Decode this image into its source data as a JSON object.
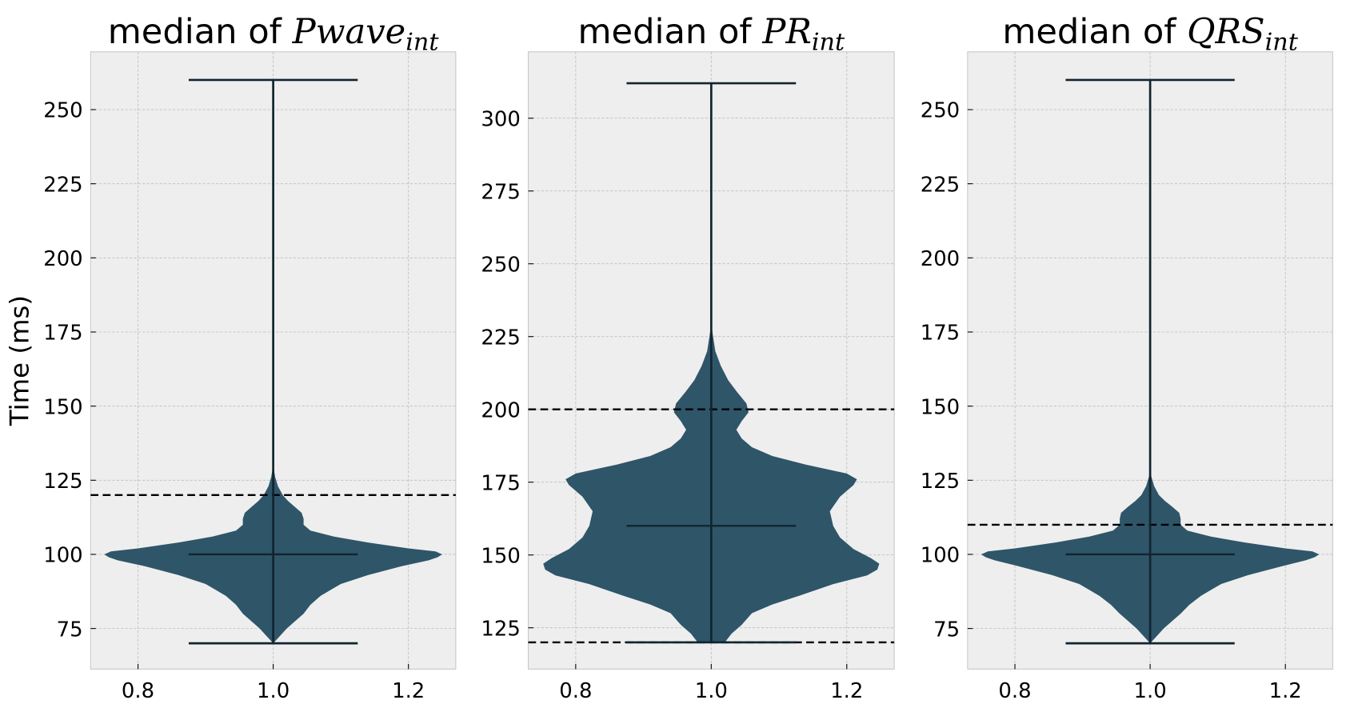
{
  "chart_data": [
    {
      "type": "violin",
      "title_prefix": "median of ",
      "title_var": "Pwave",
      "title_sub": "int",
      "ylabel": "Time (ms)",
      "xlabel": "",
      "xlim": [
        0.73,
        1.27
      ],
      "ylim": [
        61.3,
        269.5
      ],
      "xticks": [
        "0.8",
        "1.0",
        "1.2"
      ],
      "yticks": [
        "75",
        "100",
        "125",
        "150",
        "175",
        "200",
        "225",
        "250"
      ],
      "grid": true,
      "position": 1.0,
      "min": 70,
      "max": 260,
      "median": 100,
      "reference_lines": [
        120
      ],
      "density_profile": [
        [
          70,
          0
        ],
        [
          72,
          0.008
        ],
        [
          75,
          0.02
        ],
        [
          78,
          0.035
        ],
        [
          80,
          0.045
        ],
        [
          83,
          0.055
        ],
        [
          86,
          0.07
        ],
        [
          88,
          0.085
        ],
        [
          90,
          0.1
        ],
        [
          93,
          0.14
        ],
        [
          96,
          0.19
        ],
        [
          98,
          0.23
        ],
        [
          99,
          0.243
        ],
        [
          100,
          0.25
        ],
        [
          101,
          0.24
        ],
        [
          102,
          0.2
        ],
        [
          104,
          0.14
        ],
        [
          106,
          0.09
        ],
        [
          108,
          0.055
        ],
        [
          110,
          0.045
        ],
        [
          112,
          0.045
        ],
        [
          114,
          0.042
        ],
        [
          116,
          0.032
        ],
        [
          118,
          0.022
        ],
        [
          120,
          0.014
        ],
        [
          123,
          0.007
        ],
        [
          126,
          0.003
        ],
        [
          130,
          0.0
        ]
      ]
    },
    {
      "type": "violin",
      "title_prefix": "median of ",
      "title_var": "PR",
      "title_sub": "int",
      "ylabel": "",
      "xlabel": "",
      "xlim": [
        0.73,
        1.27
      ],
      "ylim": [
        110.8,
        322.8
      ],
      "xticks": [
        "0.8",
        "1.0",
        "1.2"
      ],
      "yticks": [
        "125",
        "150",
        "175",
        "200",
        "225",
        "250",
        "275",
        "300"
      ],
      "grid": true,
      "position": 1.0,
      "min": 120,
      "max": 312,
      "median": 160,
      "reference_lines": [
        200,
        120
      ],
      "density_profile": [
        [
          120,
          0.02
        ],
        [
          123,
          0.03
        ],
        [
          126,
          0.045
        ],
        [
          130,
          0.06
        ],
        [
          133,
          0.09
        ],
        [
          136,
          0.13
        ],
        [
          140,
          0.18
        ],
        [
          143,
          0.23
        ],
        [
          145,
          0.245
        ],
        [
          147,
          0.248
        ],
        [
          149,
          0.235
        ],
        [
          152,
          0.21
        ],
        [
          156,
          0.19
        ],
        [
          160,
          0.18
        ],
        [
          165,
          0.175
        ],
        [
          170,
          0.19
        ],
        [
          174,
          0.21
        ],
        [
          176,
          0.215
        ],
        [
          178,
          0.2
        ],
        [
          181,
          0.14
        ],
        [
          184,
          0.09
        ],
        [
          187,
          0.06
        ],
        [
          190,
          0.045
        ],
        [
          193,
          0.037
        ],
        [
          196,
          0.045
        ],
        [
          199,
          0.055
        ],
        [
          202,
          0.052
        ],
        [
          206,
          0.038
        ],
        [
          210,
          0.025
        ],
        [
          215,
          0.014
        ],
        [
          220,
          0.006
        ],
        [
          226,
          0.002
        ],
        [
          230,
          0.0
        ]
      ]
    },
    {
      "type": "violin",
      "title_prefix": "median of ",
      "title_var": "QRS",
      "title_sub": "int",
      "ylabel": "",
      "xlabel": "",
      "xlim": [
        0.73,
        1.27
      ],
      "ylim": [
        61.3,
        269.5
      ],
      "xticks": [
        "0.8",
        "1.0",
        "1.2"
      ],
      "yticks": [
        "75",
        "100",
        "125",
        "150",
        "175",
        "200",
        "225",
        "250"
      ],
      "grid": true,
      "position": 1.0,
      "min": 70,
      "max": 260,
      "median": 100,
      "reference_lines": [
        110
      ],
      "density_profile": [
        [
          70,
          0
        ],
        [
          72,
          0.008
        ],
        [
          75,
          0.02
        ],
        [
          78,
          0.035
        ],
        [
          80,
          0.045
        ],
        [
          83,
          0.058
        ],
        [
          86,
          0.075
        ],
        [
          88,
          0.09
        ],
        [
          90,
          0.105
        ],
        [
          93,
          0.145
        ],
        [
          96,
          0.195
        ],
        [
          98,
          0.23
        ],
        [
          99,
          0.243
        ],
        [
          100,
          0.25
        ],
        [
          101,
          0.24
        ],
        [
          102,
          0.2
        ],
        [
          104,
          0.14
        ],
        [
          106,
          0.09
        ],
        [
          108,
          0.055
        ],
        [
          110,
          0.045
        ],
        [
          112,
          0.045
        ],
        [
          114,
          0.043
        ],
        [
          116,
          0.033
        ],
        [
          118,
          0.022
        ],
        [
          120,
          0.013
        ],
        [
          123,
          0.006
        ],
        [
          126,
          0.002
        ],
        [
          128,
          0.0
        ]
      ]
    }
  ],
  "colors": {
    "violin": "#2f5569",
    "lines": "#10252f",
    "background": "#eeeeee",
    "grid": "#bdbdbd",
    "reference": "#000000"
  }
}
